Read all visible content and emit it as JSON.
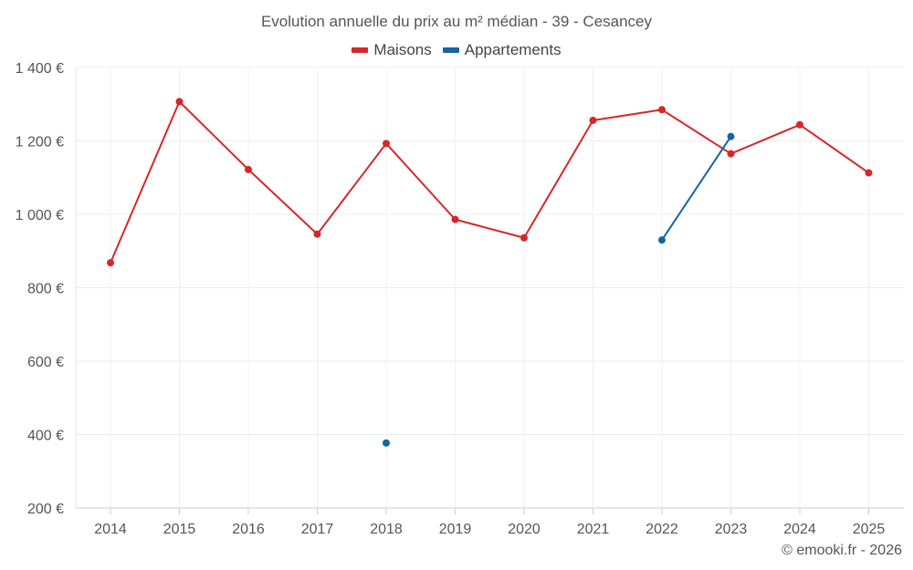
{
  "chart_data": {
    "type": "line",
    "title": "Evolution annuelle du prix au m² médian - 39 - Cesancey",
    "categories": [
      "2014",
      "2015",
      "2016",
      "2017",
      "2018",
      "2019",
      "2020",
      "2021",
      "2022",
      "2023",
      "2024",
      "2025"
    ],
    "ylim": [
      200,
      1400
    ],
    "yticks": [
      200,
      400,
      600,
      800,
      1000,
      1200,
      1400
    ],
    "ytick_labels": [
      "200 €",
      "400 €",
      "600 €",
      "800 €",
      "1 000 €",
      "1 200 €",
      "1 400 €"
    ],
    "grid": true,
    "legend_position": "top-center",
    "series": [
      {
        "name": "Maisons",
        "color": "#d62728",
        "values": [
          868,
          1307,
          1122,
          946,
          1193,
          986,
          936,
          1256,
          1285,
          1165,
          1244,
          1113
        ]
      },
      {
        "name": "Appartements",
        "color": "#1565a0",
        "values": [
          null,
          null,
          null,
          null,
          377,
          null,
          null,
          null,
          930,
          1212,
          null,
          null
        ]
      }
    ]
  },
  "credit": "© emooki.fr - 2026"
}
